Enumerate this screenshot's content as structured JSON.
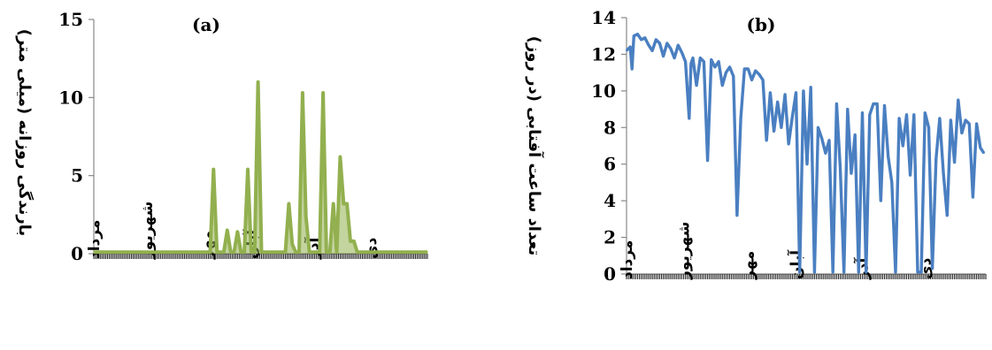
{
  "chart_data": [
    {
      "panel_label": "(a)",
      "type": "area",
      "ylabel": "بارندگی روزانه (میلی متر)",
      "ylim": [
        0,
        15
      ],
      "yticks": [
        0,
        5,
        10,
        15
      ],
      "x_months": [
        "مرداد",
        "شهریور",
        "مهر",
        "آبان",
        "آذر",
        "دی"
      ],
      "x_month_positions_day": [
        0,
        31,
        66,
        92,
        128,
        162
      ],
      "xlim_days": [
        0,
        195
      ],
      "color": "#92b04f",
      "series": [
        {
          "x": [
            0,
            68,
            70,
            72,
            74,
            76,
            78,
            80,
            82,
            84,
            86,
            88,
            90,
            92,
            94,
            96,
            98,
            100,
            102,
            104,
            106,
            108,
            110,
            112,
            114,
            116,
            118,
            120,
            122,
            124,
            126,
            128,
            130,
            132,
            134,
            136,
            138,
            140,
            142,
            144,
            146,
            148,
            150,
            152,
            154,
            156,
            158,
            160,
            162,
            164,
            166,
            168,
            195
          ],
          "y": [
            0.1,
            0.1,
            5.4,
            0.1,
            0.1,
            0.1,
            1.5,
            0.1,
            0.1,
            1.4,
            0.1,
            0.1,
            5.4,
            0.1,
            0.1,
            11.0,
            0.1,
            0.1,
            0.1,
            0.1,
            0.1,
            0.1,
            0.1,
            0.1,
            3.2,
            0.6,
            0.1,
            0.1,
            10.3,
            2.4,
            0.1,
            0.1,
            0.1,
            0.1,
            10.3,
            0.1,
            0.1,
            3.2,
            0.1,
            6.2,
            3.2,
            3.2,
            0.8,
            0.8,
            0.1,
            0.1,
            0.1,
            0.1,
            0.1,
            0.1,
            0.1,
            0.1,
            0.1
          ]
        }
      ]
    },
    {
      "panel_label": "(b)",
      "type": "line",
      "ylabel": "تعداد ساعت آفتابی (در روز)",
      "ylim": [
        0,
        14
      ],
      "yticks": [
        0,
        2,
        4,
        6,
        8,
        10,
        12,
        14
      ],
      "x_months": [
        "مرداد",
        "شهریور",
        "مهر",
        "آبان",
        "آذر",
        "دی"
      ],
      "x_month_positions_day": [
        0,
        31,
        66,
        92,
        128,
        162
      ],
      "xlim_days": [
        0,
        195
      ],
      "color": "#4a7fc1",
      "series": [
        {
          "x": [
            0,
            2,
            3,
            4,
            6,
            8,
            10,
            12,
            14,
            16,
            18,
            20,
            22,
            24,
            26,
            28,
            30,
            32,
            34,
            35,
            36,
            38,
            40,
            42,
            44,
            46,
            48,
            50,
            52,
            54,
            56,
            58,
            60,
            62,
            64,
            66,
            68,
            70,
            72,
            74,
            76,
            78,
            80,
            82,
            84,
            86,
            88,
            90,
            92,
            94,
            96,
            98,
            100,
            102,
            104,
            106,
            108,
            110,
            112,
            114,
            116,
            118,
            120,
            122,
            124,
            126,
            128,
            130,
            132,
            134,
            136,
            138,
            140,
            142,
            144,
            146,
            148,
            150,
            152,
            154,
            156,
            158,
            160,
            162,
            164,
            166,
            168,
            170,
            172,
            174,
            176,
            178,
            180,
            182,
            184,
            186,
            188,
            190,
            192,
            194
          ],
          "y": [
            12.2,
            12.4,
            11.2,
            13.0,
            13.1,
            12.8,
            12.9,
            12.5,
            12.2,
            12.8,
            12.6,
            11.9,
            12.6,
            12.3,
            11.8,
            12.5,
            12.1,
            11.6,
            8.5,
            11.5,
            11.8,
            10.3,
            11.8,
            11.6,
            6.2,
            11.7,
            11.3,
            11.6,
            10.3,
            11.0,
            11.3,
            10.8,
            3.2,
            8.5,
            11.2,
            11.2,
            10.6,
            11.1,
            10.9,
            10.6,
            7.3,
            9.9,
            7.8,
            9.4,
            8.0,
            9.8,
            7.1,
            8.6,
            9.9,
            0.1,
            10.0,
            6.0,
            10.2,
            0.1,
            8.0,
            7.4,
            6.6,
            7.3,
            0.1,
            9.3,
            5.8,
            0.1,
            9.0,
            5.5,
            7.6,
            0.1,
            8.8,
            0.1,
            8.7,
            9.3,
            9.3,
            4.0,
            9.2,
            6.4,
            5.0,
            0.1,
            8.5,
            7.0,
            8.7,
            5.4,
            8.7,
            0.1,
            0.1,
            8.8,
            8.0,
            0.3,
            6.3,
            8.5,
            5.5,
            3.2,
            8.4,
            6.1,
            9.5,
            7.7,
            8.4,
            8.2,
            4.2,
            8.2,
            6.9,
            6.6
          ]
        }
      ]
    }
  ]
}
